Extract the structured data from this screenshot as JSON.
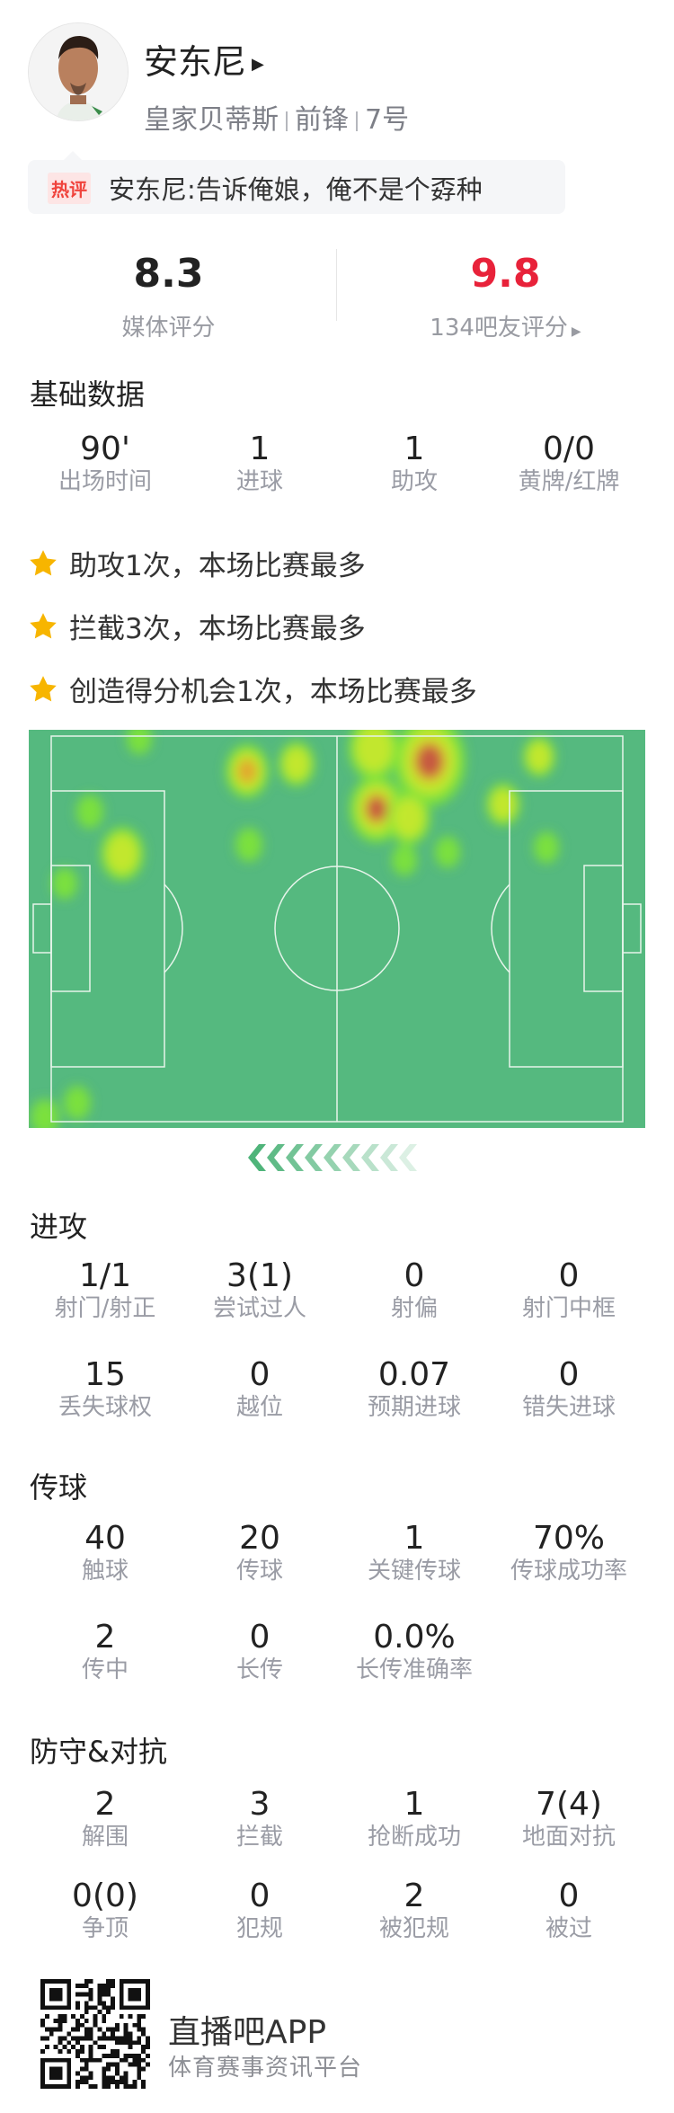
{
  "player": {
    "name": "安东尼",
    "team": "皇家贝蒂斯",
    "position": "前锋",
    "number": "7号",
    "hot_badge": "热评",
    "hot_comment": "安东尼:告诉俺娘，俺不是个孬种"
  },
  "ratings": {
    "media_score": "8.3",
    "media_label": "媒体评分",
    "fan_score": "9.8",
    "fan_label": "134吧友评分",
    "fan_color": "#e8223a"
  },
  "basic": {
    "title": "基础数据",
    "stats": [
      {
        "value": "90'",
        "label": "出场时间"
      },
      {
        "value": "1",
        "label": "进球"
      },
      {
        "value": "1",
        "label": "助攻"
      },
      {
        "value": "0/0",
        "label": "黄牌/红牌"
      }
    ]
  },
  "highlights": [
    {
      "icon": "star-icon",
      "text": "助攻1次，本场比赛最多"
    },
    {
      "icon": "star-icon",
      "text": "拦截3次，本场比赛最多"
    },
    {
      "icon": "star-icon",
      "text": "创造得分机会1次，本场比赛最多"
    }
  ],
  "heatmap": {
    "pitch_color": "#55b97f",
    "direction": "attacking-left"
  },
  "attack": {
    "title": "进攻",
    "stats": [
      {
        "value": "1/1",
        "label": "射门/射正"
      },
      {
        "value": "3(1)",
        "label": "尝试过人"
      },
      {
        "value": "0",
        "label": "射偏"
      },
      {
        "value": "0",
        "label": "射门中框"
      },
      {
        "value": "15",
        "label": "丢失球权"
      },
      {
        "value": "0",
        "label": "越位"
      },
      {
        "value": "0.07",
        "label": "预期进球"
      },
      {
        "value": "0",
        "label": "错失进球"
      }
    ]
  },
  "passing": {
    "title": "传球",
    "stats": [
      {
        "value": "40",
        "label": "触球"
      },
      {
        "value": "20",
        "label": "传球"
      },
      {
        "value": "1",
        "label": "关键传球"
      },
      {
        "value": "70%",
        "label": "传球成功率"
      },
      {
        "value": "2",
        "label": "传中"
      },
      {
        "value": "0",
        "label": "长传"
      },
      {
        "value": "0.0%",
        "label": "长传准确率"
      }
    ]
  },
  "defense": {
    "title": "防守&对抗",
    "stats": [
      {
        "value": "2",
        "label": "解围"
      },
      {
        "value": "3",
        "label": "拦截"
      },
      {
        "value": "1",
        "label": "抢断成功"
      },
      {
        "value": "7(4)",
        "label": "地面对抗"
      },
      {
        "value": "0(0)",
        "label": "争顶"
      },
      {
        "value": "0",
        "label": "犯规"
      },
      {
        "value": "2",
        "label": "被犯规"
      },
      {
        "value": "0",
        "label": "被过"
      }
    ]
  },
  "footer": {
    "app_name": "直播吧APP",
    "tagline": "体育赛事资讯平台"
  }
}
